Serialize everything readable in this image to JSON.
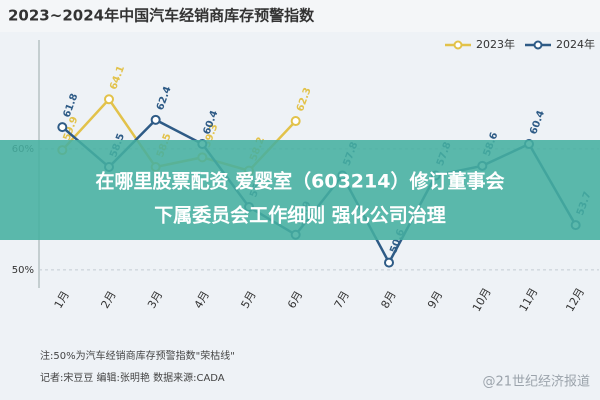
{
  "chart_data": {
    "type": "line",
    "title": "2023~2024年中国汽车经销商库存预警指数",
    "categories": [
      "1月",
      "2月",
      "3月",
      "4月",
      "5月",
      "6月",
      "7月",
      "8月",
      "9月",
      "10月",
      "11月",
      "12月"
    ],
    "series": [
      {
        "name": "2023年",
        "color": "#e2c24a",
        "values": [
          59.9,
          64.1,
          58.5,
          59.3,
          58.2,
          62.3,
          null,
          null,
          null,
          null,
          null,
          null
        ]
      },
      {
        "name": "2024年",
        "color": "#2e5b86",
        "values": [
          61.8,
          58.5,
          62.4,
          60.4,
          55.2,
          52.9,
          57.8,
          50.6,
          57.8,
          58.6,
          60.4,
          53.7
        ]
      }
    ],
    "ylim": [
      48.5,
      69
    ],
    "yticks": [
      {
        "value": 50,
        "label": "50%"
      },
      {
        "value": 60,
        "label": "60%"
      }
    ],
    "grid": true,
    "legend": "top-right",
    "notes": [
      "注:50%为汽车经销商库存预警指数\"荣枯线\"",
      "记者:宋豆豆 编辑:张明艳 数据来源:CADA"
    ],
    "watermark": "@21世纪经济报道",
    "banner": [
      "在哪里股票配资 爱婴室（603214）修订董事会",
      "下属委员会工作细则 强化公司治理"
    ]
  }
}
